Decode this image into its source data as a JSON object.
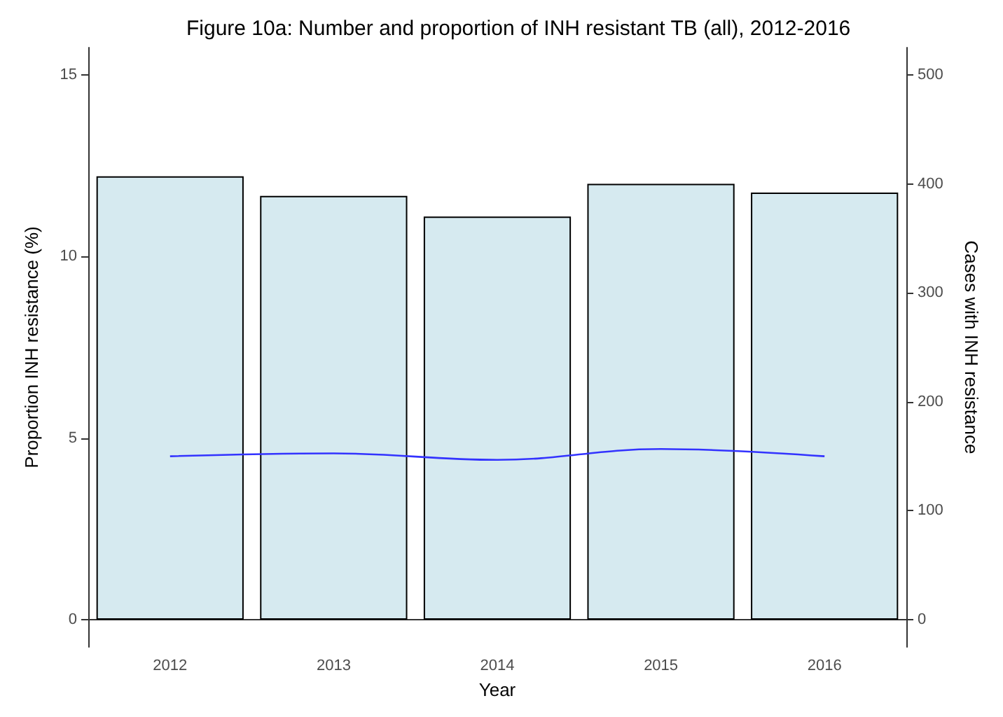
{
  "chart_data": {
    "type": "bar",
    "title": "Figure 10a: Number and proportion of INH resistant TB (all), 2012-2016",
    "xlabel": "Year",
    "ylabel": "Proportion INH resistance (%)",
    "y2label": "Cases with INH resistance",
    "categories": [
      "2012",
      "2013",
      "2014",
      "2015",
      "2016"
    ],
    "series": [
      {
        "axis": "y2",
        "color": "#d6eaf0",
        "values": [
          407,
          389,
          370,
          400,
          392
        ]
      },
      {
        "type": "line",
        "axis": "y",
        "color": "#3333ff",
        "values": [
          4.5,
          4.58,
          4.4,
          4.7,
          4.5
        ]
      }
    ],
    "ylim": [
      -0.75,
      15.75
    ],
    "yticks": [
      0,
      5,
      10,
      15
    ],
    "y2lim": [
      -25,
      525
    ],
    "y2ticks": [
      0,
      100,
      200,
      300,
      400,
      500
    ],
    "grid": false,
    "marker": "none",
    "line_style": "solid"
  }
}
